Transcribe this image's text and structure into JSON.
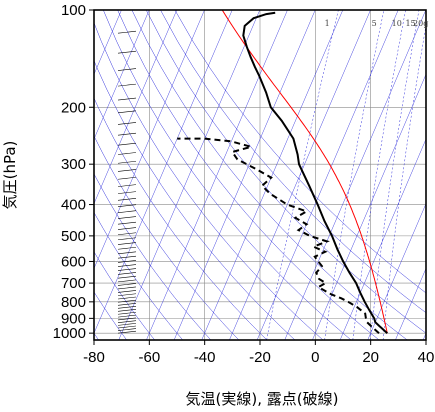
{
  "chart_data": {
    "type": "line",
    "chart_kind": "skew-T log-P thermodynamic diagram",
    "xlabel": "気温(実線), 露点(破線)",
    "ylabel": "気圧(hPa)",
    "x_unit": "°C",
    "y_unit": "hPa",
    "y_scale": "log",
    "y_inverted": true,
    "xlim": [
      -80,
      40
    ],
    "ylim": [
      1050,
      100
    ],
    "x_ticks": [
      -80,
      -60,
      -40,
      -20,
      0,
      20,
      40
    ],
    "y_ticks": [
      100,
      200,
      300,
      400,
      500,
      600,
      700,
      800,
      900,
      1000
    ],
    "grid": true,
    "mixing_ratio_labels": [
      "1",
      "5",
      "10",
      "15",
      "20g"
    ],
    "mixing_ratio_values_gkg": [
      1,
      5,
      10,
      15,
      20
    ],
    "background_colors": {
      "isotherms": "#8a8a8a",
      "isobars": "#8a8a8a",
      "dry_adiabats": "#3333dd",
      "moist_adiabat": "#ff0000",
      "frame": "#000000"
    },
    "series": [
      {
        "key": "temperature",
        "style": "solid",
        "color": "#000000",
        "points": [
          {
            "p": 1000,
            "t": 26
          },
          {
            "p": 975,
            "t": 24
          },
          {
            "p": 950,
            "t": 22
          },
          {
            "p": 925,
            "t": 20
          },
          {
            "p": 900,
            "t": 19
          },
          {
            "p": 850,
            "t": 16
          },
          {
            "p": 800,
            "t": 13
          },
          {
            "p": 750,
            "t": 10
          },
          {
            "p": 700,
            "t": 7
          },
          {
            "p": 650,
            "t": 3
          },
          {
            "p": 600,
            "t": -1
          },
          {
            "p": 550,
            "t": -5
          },
          {
            "p": 500,
            "t": -9
          },
          {
            "p": 450,
            "t": -14
          },
          {
            "p": 400,
            "t": -19
          },
          {
            "p": 350,
            "t": -25
          },
          {
            "p": 300,
            "t": -32
          },
          {
            "p": 280,
            "t": -34
          },
          {
            "p": 250,
            "t": -38
          },
          {
            "p": 220,
            "t": -45
          },
          {
            "p": 200,
            "t": -51
          },
          {
            "p": 180,
            "t": -55
          },
          {
            "p": 160,
            "t": -60
          },
          {
            "p": 150,
            "t": -63
          },
          {
            "p": 140,
            "t": -66
          },
          {
            "p": 130,
            "t": -69
          },
          {
            "p": 120,
            "t": -72
          },
          {
            "p": 112,
            "t": -73
          },
          {
            "p": 106,
            "t": -71
          },
          {
            "p": 103,
            "t": -67
          },
          {
            "p": 102,
            "t": -64
          }
        ]
      },
      {
        "key": "dewpoint",
        "style": "dashed",
        "color": "#000000",
        "points": [
          {
            "p": 1000,
            "t": 23
          },
          {
            "p": 975,
            "t": 21
          },
          {
            "p": 950,
            "t": 19
          },
          {
            "p": 925,
            "t": 17
          },
          {
            "p": 900,
            "t": 16
          },
          {
            "p": 870,
            "t": 15
          },
          {
            "p": 850,
            "t": 13
          },
          {
            "p": 830,
            "t": 11
          },
          {
            "p": 800,
            "t": 7
          },
          {
            "p": 780,
            "t": 4
          },
          {
            "p": 760,
            "t": 0
          },
          {
            "p": 740,
            "t": -3
          },
          {
            "p": 720,
            "t": -6
          },
          {
            "p": 700,
            "t": -4
          },
          {
            "p": 680,
            "t": -7
          },
          {
            "p": 650,
            "t": -9
          },
          {
            "p": 620,
            "t": -8
          },
          {
            "p": 600,
            "t": -10
          },
          {
            "p": 580,
            "t": -12
          },
          {
            "p": 560,
            "t": -9
          },
          {
            "p": 540,
            "t": -14
          },
          {
            "p": 520,
            "t": -10
          },
          {
            "p": 500,
            "t": -17
          },
          {
            "p": 480,
            "t": -22
          },
          {
            "p": 460,
            "t": -20
          },
          {
            "p": 440,
            "t": -25
          },
          {
            "p": 420,
            "t": -22
          },
          {
            "p": 400,
            "t": -30
          },
          {
            "p": 370,
            "t": -38
          },
          {
            "p": 350,
            "t": -42
          },
          {
            "p": 330,
            "t": -40
          },
          {
            "p": 310,
            "t": -47
          },
          {
            "p": 290,
            "t": -55
          },
          {
            "p": 275,
            "t": -58
          },
          {
            "p": 265,
            "t": -52
          },
          {
            "p": 255,
            "t": -60
          },
          {
            "p": 250,
            "t": -70
          },
          {
            "p": 250,
            "t": -80
          }
        ]
      }
    ]
  }
}
